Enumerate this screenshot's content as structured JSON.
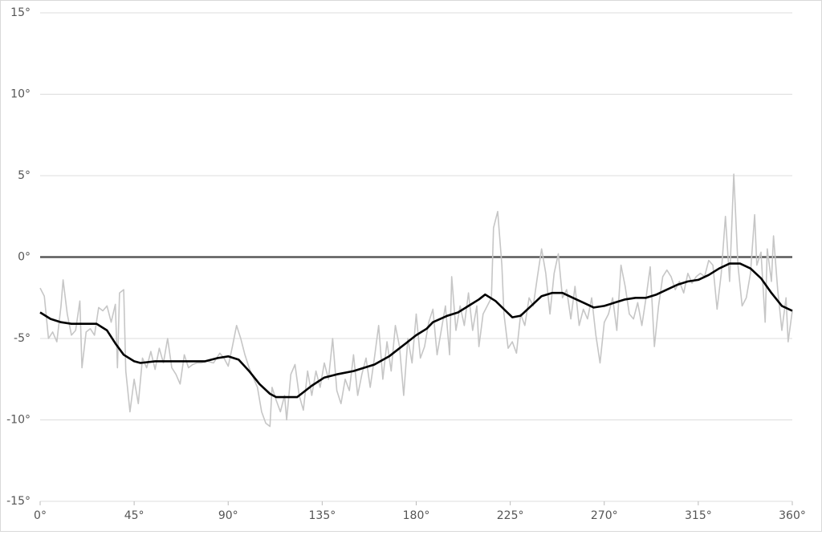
{
  "chart_data": {
    "type": "line",
    "xlim": [
      0,
      360
    ],
    "xticks": [
      {
        "value": 0,
        "label": "0°"
      },
      {
        "value": 45,
        "label": "45°"
      },
      {
        "value": 90,
        "label": "90°"
      },
      {
        "value": 135,
        "label": "135°"
      },
      {
        "value": 180,
        "label": "180°"
      },
      {
        "value": 225,
        "label": "225°"
      },
      {
        "value": 270,
        "label": "270°"
      },
      {
        "value": 315,
        "label": "315°"
      },
      {
        "value": 360,
        "label": "360°"
      }
    ],
    "ylim": [
      -15,
      15
    ],
    "yticks": [
      {
        "value": -15,
        "label": "-15°"
      },
      {
        "value": -10,
        "label": "-10°"
      },
      {
        "value": -5,
        "label": "-5°"
      },
      {
        "value": 0,
        "label": "0°"
      },
      {
        "value": 5,
        "label": "5°"
      },
      {
        "value": 10,
        "label": "10°"
      },
      {
        "value": 15,
        "label": "15°"
      }
    ],
    "grid": true,
    "series": [
      {
        "color": "#c6c6c6",
        "x": [
          0,
          2,
          4,
          6,
          8,
          10,
          11,
          13,
          15,
          17,
          19,
          20,
          22,
          24,
          26,
          28,
          30,
          32,
          34,
          36,
          37,
          38,
          40,
          41,
          43,
          45,
          47,
          49,
          51,
          53,
          55,
          57,
          59,
          61,
          63,
          65,
          67,
          69,
          71,
          73,
          75,
          77,
          80,
          83,
          86,
          88,
          90,
          92,
          94,
          96,
          98,
          100,
          102,
          104,
          106,
          108,
          110,
          111,
          113,
          115,
          117,
          118,
          120,
          122,
          124,
          126,
          128,
          130,
          132,
          134,
          136,
          138,
          140,
          142,
          144,
          146,
          148,
          150,
          152,
          154,
          156,
          158,
          160,
          162,
          164,
          166,
          168,
          170,
          172,
          174,
          176,
          178,
          180,
          182,
          184,
          186,
          188,
          190,
          192,
          194,
          196,
          197,
          199,
          201,
          203,
          205,
          207,
          209,
          210,
          212,
          214,
          216,
          217,
          219,
          221,
          222,
          224,
          226,
          228,
          230,
          232,
          234,
          236,
          238,
          240,
          242,
          244,
          246,
          248,
          250,
          252,
          254,
          256,
          258,
          260,
          262,
          264,
          266,
          268,
          270,
          272,
          274,
          276,
          278,
          280,
          282,
          284,
          286,
          288,
          290,
          292,
          294,
          296,
          298,
          300,
          302,
          304,
          306,
          308,
          310,
          312,
          314,
          316,
          318,
          320,
          322,
          324,
          326,
          328,
          330,
          332,
          334,
          336,
          338,
          340,
          342,
          343,
          345,
          347,
          348,
          350,
          351,
          353,
          355,
          357,
          358,
          360
        ],
        "values": [
          -1.9,
          -2.4,
          -5.0,
          -4.6,
          -5.2,
          -3.0,
          -1.4,
          -3.5,
          -4.8,
          -4.5,
          -2.7,
          -6.8,
          -4.6,
          -4.4,
          -4.8,
          -3.1,
          -3.3,
          -3.0,
          -4.0,
          -2.9,
          -6.8,
          -2.2,
          -2.0,
          -7.0,
          -9.5,
          -7.5,
          -9.0,
          -6.2,
          -6.8,
          -5.8,
          -6.9,
          -5.6,
          -6.5,
          -5.0,
          -6.8,
          -7.2,
          -7.8,
          -6.0,
          -6.8,
          -6.6,
          -6.5,
          -6.5,
          -6.4,
          -6.5,
          -5.9,
          -6.2,
          -6.7,
          -5.5,
          -4.2,
          -5.0,
          -6.0,
          -6.8,
          -7.4,
          -8.0,
          -9.5,
          -10.2,
          -10.4,
          -8.0,
          -8.8,
          -9.5,
          -8.5,
          -10.0,
          -7.2,
          -6.6,
          -8.5,
          -9.4,
          -7.0,
          -8.5,
          -7.0,
          -8.0,
          -6.5,
          -7.5,
          -5.0,
          -8.2,
          -9.0,
          -7.5,
          -8.2,
          -6.0,
          -8.5,
          -7.2,
          -6.2,
          -8.0,
          -6.2,
          -4.2,
          -7.5,
          -5.2,
          -7.0,
          -4.2,
          -5.5,
          -8.5,
          -5.0,
          -6.5,
          -3.5,
          -6.2,
          -5.5,
          -4.0,
          -3.2,
          -6.0,
          -4.5,
          -3.0,
          -6.0,
          -1.2,
          -4.5,
          -3.0,
          -4.2,
          -2.2,
          -4.5,
          -3.0,
          -5.5,
          -3.5,
          -3.0,
          -2.5,
          1.8,
          2.8,
          -0.5,
          -3.5,
          -5.6,
          -5.2,
          -5.9,
          -3.5,
          -4.2,
          -2.5,
          -3.0,
          -1.2,
          0.5,
          -1.0,
          -3.5,
          -1.0,
          0.2,
          -2.5,
          -2.0,
          -3.8,
          -1.8,
          -4.2,
          -3.2,
          -3.8,
          -2.5,
          -4.8,
          -6.5,
          -4.0,
          -3.5,
          -2.5,
          -4.5,
          -0.5,
          -1.8,
          -3.5,
          -3.8,
          -2.8,
          -4.2,
          -2.5,
          -0.6,
          -5.5,
          -3.0,
          -1.2,
          -0.8,
          -1.2,
          -2.0,
          -1.5,
          -2.2,
          -1.0,
          -1.6,
          -1.2,
          -1.0,
          -1.2,
          -0.2,
          -0.5,
          -3.2,
          -1.0,
          2.5,
          -1.5,
          5.1,
          -0.5,
          -3.0,
          -2.5,
          -1.0,
          2.6,
          -0.5,
          0.3,
          -4.0,
          0.5,
          -1.5,
          1.3,
          -2.0,
          -4.5,
          -2.5,
          -5.2,
          -3.3
        ]
      },
      {
        "color": "#000000",
        "x": [
          0,
          5,
          10,
          15,
          20,
          27,
          32,
          36,
          40,
          45,
          48,
          55,
          65,
          79,
          85,
          90,
          95,
          100,
          105,
          110,
          113,
          118,
          123,
          130,
          136,
          142,
          150,
          160,
          167,
          170,
          175,
          180,
          185,
          188,
          195,
          200,
          205,
          210,
          213,
          218,
          222,
          226,
          230,
          235,
          240,
          245,
          250,
          255,
          260,
          265,
          270,
          275,
          280,
          285,
          290,
          295,
          300,
          305,
          310,
          315,
          320,
          325,
          330,
          335,
          340,
          345,
          350,
          355,
          360
        ],
        "values": [
          -3.4,
          -3.8,
          -4.0,
          -4.1,
          -4.1,
          -4.1,
          -4.5,
          -5.3,
          -6.0,
          -6.4,
          -6.5,
          -6.4,
          -6.4,
          -6.4,
          -6.2,
          -6.1,
          -6.3,
          -7.0,
          -7.8,
          -8.4,
          -8.6,
          -8.6,
          -8.6,
          -7.9,
          -7.4,
          -7.2,
          -7.0,
          -6.6,
          -6.1,
          -5.8,
          -5.3,
          -4.8,
          -4.4,
          -4.0,
          -3.6,
          -3.4,
          -3.0,
          -2.6,
          -2.3,
          -2.7,
          -3.2,
          -3.7,
          -3.6,
          -3.0,
          -2.4,
          -2.2,
          -2.2,
          -2.5,
          -2.8,
          -3.1,
          -3.0,
          -2.8,
          -2.6,
          -2.5,
          -2.5,
          -2.3,
          -2.0,
          -1.7,
          -1.5,
          -1.4,
          -1.1,
          -0.7,
          -0.4,
          -0.4,
          -0.7,
          -1.3,
          -2.2,
          -3.0,
          -3.3
        ]
      }
    ]
  }
}
